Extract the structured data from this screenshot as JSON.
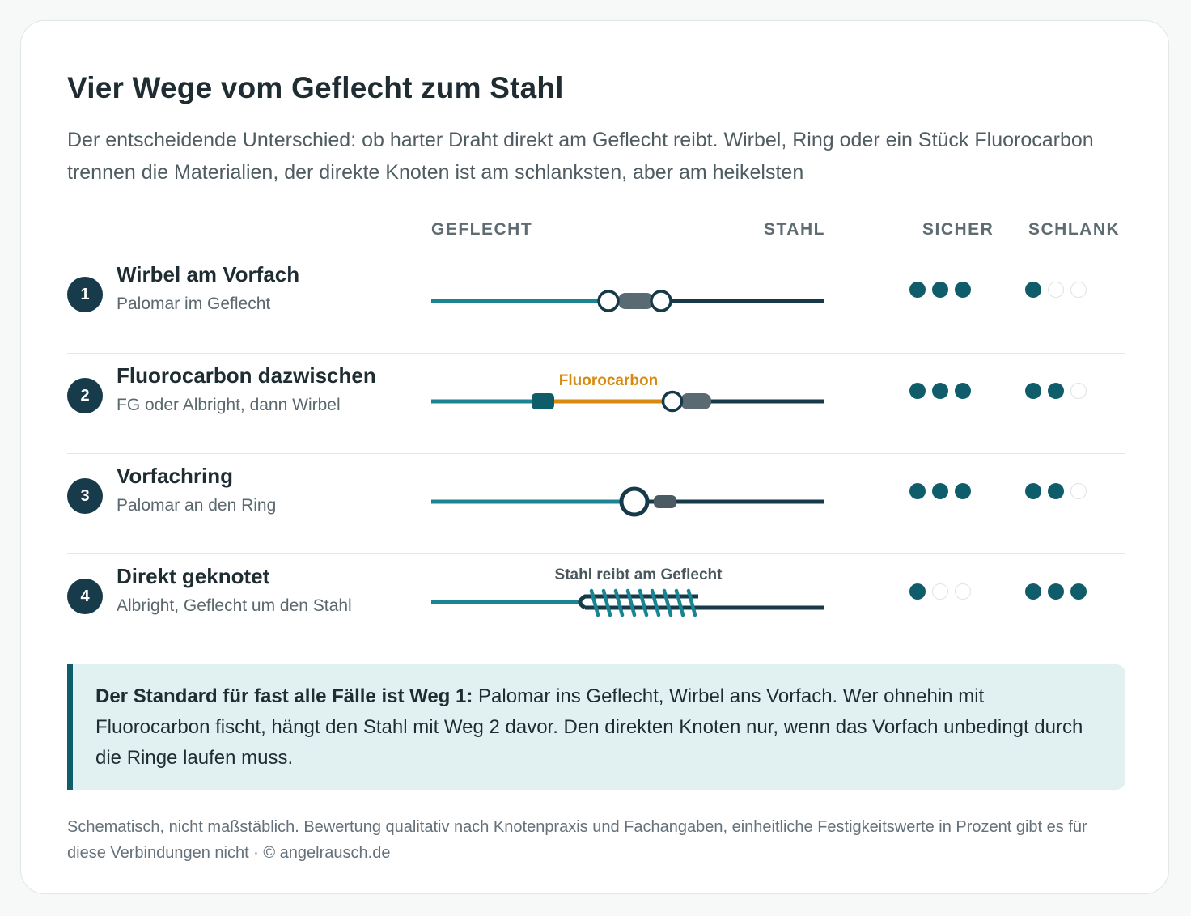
{
  "title": "Vier Wege vom Geflecht zum Stahl",
  "subtitle": "Der entscheidende Unterschied: ob harter Draht direkt am Geflecht reibt. Wirbel, Ring oder ein Stück Fluorocarbon trennen die Materialien, der direkte Knoten ist am schlanksten, aber am heikelsten",
  "columns": {
    "left": "GEFLECHT",
    "right": "STAHL",
    "sicher": "SICHER",
    "schlank": "SCHLANK"
  },
  "colors": {
    "braid": "#1b8492",
    "steel": "#163a4a",
    "fluoro": "#d88a10",
    "swivel": "#5a6a72",
    "dot_on": "#0f5d6b",
    "dot_off": "#dfe3e4"
  },
  "rows": [
    {
      "number": "1",
      "title": "Wirbel am Vorfach",
      "subtitle": "Palomar im Geflecht",
      "sicher": 3,
      "schlank": 1,
      "annotation": ""
    },
    {
      "number": "2",
      "title": "Fluorocarbon dazwischen",
      "subtitle": "FG oder Albright, dann Wirbel",
      "sicher": 3,
      "schlank": 2,
      "annotation": "Fluorocarbon"
    },
    {
      "number": "3",
      "title": "Vorfachring",
      "subtitle": "Palomar an den Ring",
      "sicher": 3,
      "schlank": 2,
      "annotation": ""
    },
    {
      "number": "4",
      "title": "Direkt geknotet",
      "subtitle": "Albright, Geflecht um den Stahl",
      "sicher": 1,
      "schlank": 3,
      "annotation": "Stahl reibt am Geflecht"
    }
  ],
  "rating_max": 3,
  "note": {
    "bold": "Der Standard für fast alle Fälle ist Weg 1:",
    "text": " Palomar ins Geflecht, Wirbel ans Vorfach. Wer ohnehin mit Fluorocarbon fischt, hängt den Stahl mit Weg 2 davor. Den direkten Knoten nur, wenn das Vorfach unbedingt durch die Ringe laufen muss."
  },
  "footer": "Schematisch, nicht maßstäblich. Bewertung qualitativ nach Knotenpraxis und Fachangaben, einheitliche Festigkeitswerte in Prozent gibt es für diese Verbindungen nicht · © angelrausch.de"
}
